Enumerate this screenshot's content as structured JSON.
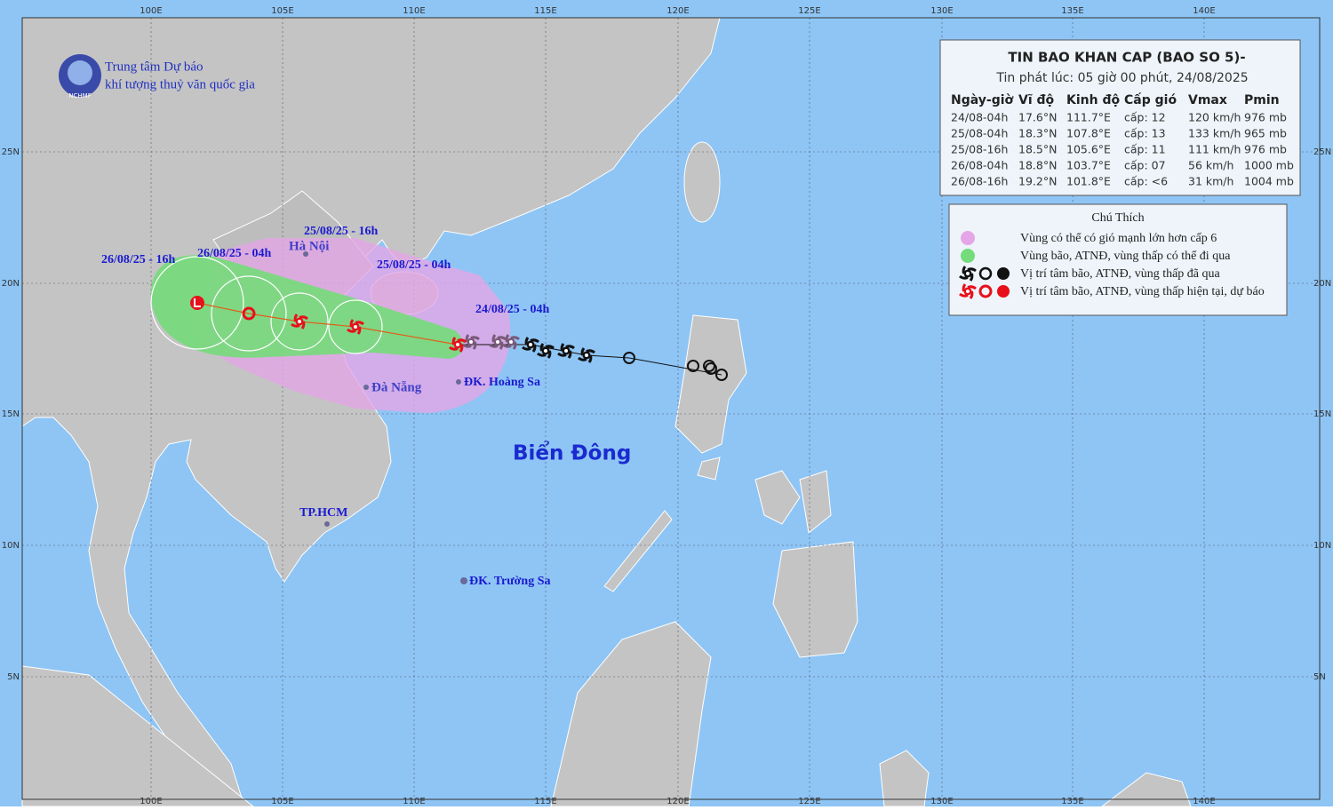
{
  "logo": {
    "line1": "Trung tâm Dự báo",
    "line2": "khí tượng thuỷ văn quốc gia",
    "abbr": "NCHMF"
  },
  "axes": {
    "lon": [
      "100E",
      "105E",
      "110E",
      "115E",
      "120E",
      "125E",
      "130E",
      "135E",
      "140E"
    ],
    "lat": [
      "25N",
      "20N",
      "15N",
      "10N",
      "5N"
    ]
  },
  "places": {
    "hanoi": "Hà Nội",
    "danang": "Đà Nẵng",
    "hoangsa": "ĐK. Hoàng Sa",
    "hcm": "TP.HCM",
    "truongsa": "ĐK. Trường Sa",
    "sea": "Biển Đông"
  },
  "track_labels": [
    "24/08/25 - 04h",
    "25/08/25 - 04h",
    "25/08/25 - 16h",
    "26/08/25 - 04h",
    "26/08/25 - 16h"
  ],
  "info": {
    "title": "TIN BAO KHAN CAP (BAO SO 5)-",
    "issued": "Tin phát lúc: 05 giờ 00 phút, 24/08/2025",
    "columns": [
      "Ngày-giờ",
      "Vĩ độ",
      "Kinh độ",
      "Cấp gió",
      "Vmax",
      "Pmin"
    ],
    "rows": [
      [
        "24/08-04h",
        "17.6°N",
        "111.7°E",
        "cấp: 12",
        "120 km/h",
        "976 mb"
      ],
      [
        "25/08-04h",
        "18.3°N",
        "107.8°E",
        "cấp: 13",
        "133 km/h",
        "965 mb"
      ],
      [
        "25/08-16h",
        "18.5°N",
        "105.6°E",
        "cấp: 11",
        "111 km/h",
        "976 mb"
      ],
      [
        "26/08-04h",
        "18.8°N",
        "103.7°E",
        "cấp: 07",
        "56 km/h",
        "1000 mb"
      ],
      [
        "26/08-16h",
        "19.2°N",
        "101.8°E",
        "cấp: <6",
        "31 km/h",
        "1004 mb"
      ]
    ]
  },
  "legend": {
    "title": "Chú Thích",
    "items": [
      "Vùng có thể có gió mạnh lớn hơn cấp 6",
      "Vùng bão, ATNĐ, vùng thấp có thể đi qua",
      "Vị trí tâm bão, ATNĐ, vùng thấp đã qua",
      "Vị trí tâm bão, ATNĐ, vùng thấp hiện tại, dự báo"
    ]
  }
}
